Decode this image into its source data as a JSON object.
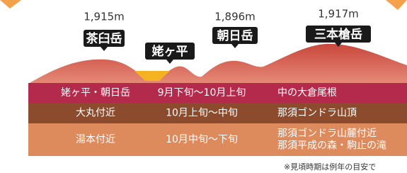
{
  "mountains": [
    {
      "elevation": "1,915m",
      "name": "茶臼岳"
    },
    {
      "name": "姥ヶ平"
    },
    {
      "elevation": "1,896m",
      "name": "朝日岳"
    },
    {
      "elevation": "1,917m",
      "name": "三本槍岳"
    }
  ],
  "table": {
    "rows": [
      [
        "姥ヶ平・朝日岳",
        "9月下旬〜10月上旬",
        [
          "中の大倉尾根"
        ]
      ],
      [
        "大丸付近",
        "10月上旬〜中旬",
        [
          "那須ゴンドラ山頂"
        ]
      ],
      [
        "湯本付近",
        "10月中旬〜下旬",
        [
          "那須ゴンドラ山麓付近",
          "那須平成の森・駒止の滝"
        ]
      ]
    ]
  },
  "note": "※見頃時期は例年の目安で"
}
